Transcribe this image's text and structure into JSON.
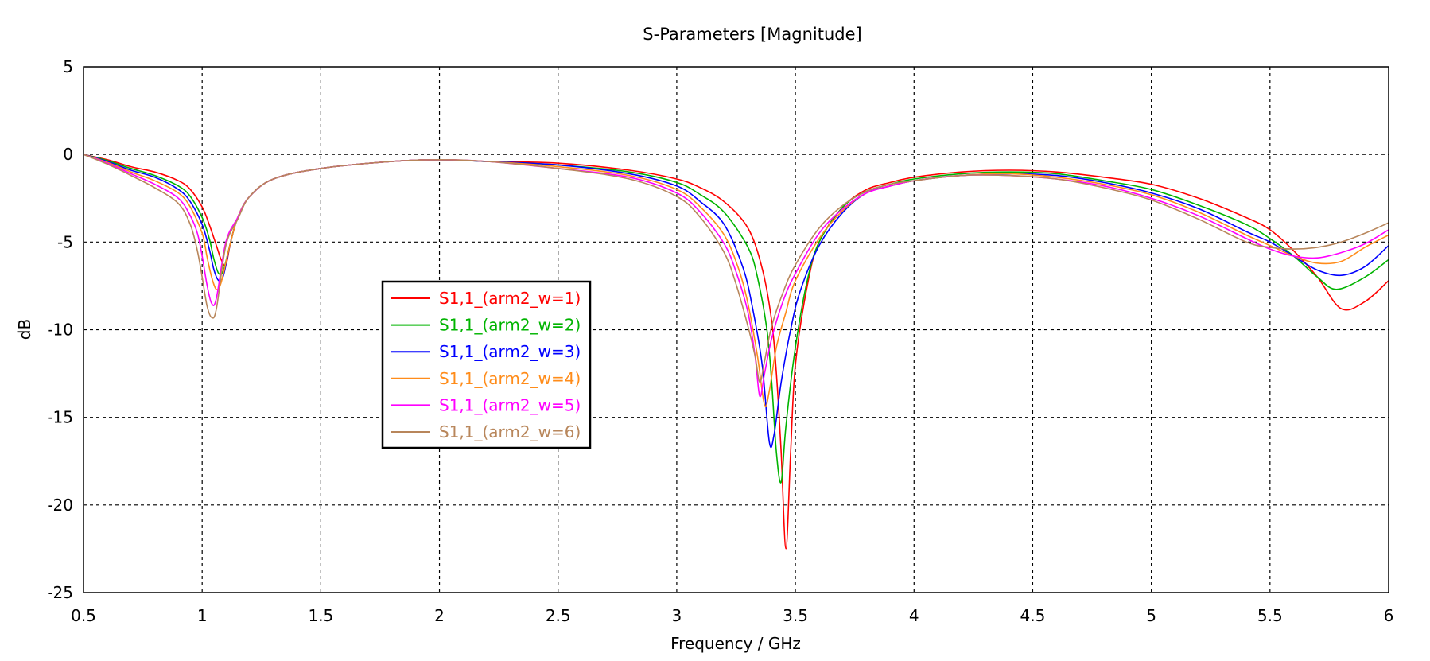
{
  "chart_data": {
    "type": "line",
    "title": "S-Parameters [Magnitude]",
    "xlabel": "Frequency / GHz",
    "ylabel": "dB",
    "xlim": [
      0.5,
      6
    ],
    "ylim": [
      -25,
      5
    ],
    "xticks": [
      0.5,
      1,
      1.5,
      2,
      2.5,
      3,
      3.5,
      4,
      4.5,
      5,
      5.5,
      6
    ],
    "xtick_labels": [
      "0.5",
      "1",
      "1.5",
      "2",
      "2.5",
      "3",
      "3.5",
      "4",
      "4.5",
      "5",
      "5.5",
      "6"
    ],
    "yticks": [
      5,
      0,
      -5,
      -10,
      -15,
      -20,
      -25
    ],
    "ytick_labels": [
      "5",
      "0",
      "-5",
      "-10",
      "-15",
      "-20",
      "-25"
    ],
    "grid": true,
    "legend_position": "center-left",
    "series": [
      {
        "name": "S1,1_(arm2_w=1)",
        "color": "#ff0000",
        "x": [
          0.5,
          0.6,
          0.7,
          0.8,
          0.9,
          0.95,
          1.0,
          1.03,
          1.06,
          1.08,
          1.1,
          1.12,
          1.15,
          1.2,
          1.3,
          1.5,
          1.8,
          2.0,
          2.2,
          2.5,
          2.8,
          3.0,
          3.1,
          3.2,
          3.3,
          3.36,
          3.4,
          3.42,
          3.44,
          3.46,
          3.48,
          3.5,
          3.55,
          3.6,
          3.7,
          3.8,
          3.9,
          4.0,
          4.2,
          4.4,
          4.6,
          4.8,
          5.0,
          5.2,
          5.4,
          5.5,
          5.6,
          5.7,
          5.8,
          5.9,
          6.0
        ],
        "y": [
          0,
          -0.3,
          -0.7,
          -1.0,
          -1.5,
          -2.0,
          -3.0,
          -4.0,
          -5.2,
          -6.0,
          -6.3,
          -5.0,
          -3.6,
          -2.4,
          -1.4,
          -0.8,
          -0.4,
          -0.3,
          -0.4,
          -0.5,
          -0.9,
          -1.4,
          -1.9,
          -2.7,
          -4.2,
          -6.5,
          -9.5,
          -12.5,
          -17.0,
          -22.5,
          -17.0,
          -12.0,
          -7.5,
          -5.0,
          -3.0,
          -2.0,
          -1.6,
          -1.3,
          -1.0,
          -0.9,
          -1.0,
          -1.3,
          -1.7,
          -2.5,
          -3.6,
          -4.3,
          -5.5,
          -7.0,
          -8.8,
          -8.4,
          -7.2
        ]
      },
      {
        "name": "S1,1_(arm2_w=2)",
        "color": "#00b400",
        "x": [
          0.5,
          0.6,
          0.7,
          0.8,
          0.9,
          0.95,
          1.0,
          1.03,
          1.05,
          1.07,
          1.09,
          1.12,
          1.15,
          1.2,
          1.3,
          1.5,
          1.8,
          2.0,
          2.2,
          2.5,
          2.8,
          3.0,
          3.1,
          3.2,
          3.3,
          3.34,
          3.38,
          3.4,
          3.42,
          3.44,
          3.46,
          3.5,
          3.55,
          3.6,
          3.7,
          3.8,
          3.9,
          4.0,
          4.2,
          4.4,
          4.6,
          4.8,
          5.0,
          5.2,
          5.4,
          5.5,
          5.6,
          5.7,
          5.78,
          5.9,
          6.0
        ],
        "y": [
          0,
          -0.35,
          -0.8,
          -1.2,
          -1.8,
          -2.4,
          -3.6,
          -4.8,
          -6.0,
          -6.8,
          -6.6,
          -5.0,
          -3.6,
          -2.4,
          -1.4,
          -0.8,
          -0.4,
          -0.3,
          -0.4,
          -0.6,
          -1.0,
          -1.6,
          -2.3,
          -3.3,
          -5.3,
          -7.0,
          -10.0,
          -13.0,
          -17.0,
          -18.7,
          -15.5,
          -11.0,
          -7.2,
          -5.0,
          -3.0,
          -2.1,
          -1.7,
          -1.4,
          -1.1,
          -1.0,
          -1.1,
          -1.5,
          -2.0,
          -2.9,
          -4.0,
          -4.8,
          -5.8,
          -7.0,
          -7.7,
          -7.0,
          -6.0
        ]
      },
      {
        "name": "S1,1_(arm2_w=3)",
        "color": "#0000ff",
        "x": [
          0.5,
          0.6,
          0.7,
          0.8,
          0.9,
          0.95,
          1.0,
          1.03,
          1.05,
          1.07,
          1.09,
          1.12,
          1.15,
          1.2,
          1.3,
          1.5,
          1.8,
          2.0,
          2.2,
          2.5,
          2.8,
          3.0,
          3.1,
          3.2,
          3.28,
          3.32,
          3.36,
          3.39,
          3.41,
          3.44,
          3.48,
          3.52,
          3.6,
          3.7,
          3.8,
          3.9,
          4.0,
          4.2,
          4.4,
          4.6,
          4.8,
          5.0,
          5.2,
          5.4,
          5.5,
          5.6,
          5.7,
          5.8,
          5.9,
          6.0
        ],
        "y": [
          0,
          -0.4,
          -0.9,
          -1.3,
          -2.0,
          -2.7,
          -4.0,
          -5.4,
          -6.6,
          -7.2,
          -6.9,
          -5.0,
          -3.6,
          -2.4,
          -1.4,
          -0.8,
          -0.4,
          -0.3,
          -0.4,
          -0.6,
          -1.1,
          -1.8,
          -2.7,
          -4.0,
          -6.5,
          -8.8,
          -12.0,
          -16.4,
          -16.0,
          -13.0,
          -10.0,
          -7.8,
          -5.2,
          -3.3,
          -2.2,
          -1.8,
          -1.5,
          -1.2,
          -1.1,
          -1.2,
          -1.6,
          -2.2,
          -3.1,
          -4.4,
          -5.0,
          -5.8,
          -6.6,
          -6.9,
          -6.4,
          -5.2
        ]
      },
      {
        "name": "S1,1_(arm2_w=4)",
        "color": "#ff8c1a",
        "x": [
          0.5,
          0.6,
          0.7,
          0.8,
          0.9,
          0.95,
          1.0,
          1.02,
          1.04,
          1.06,
          1.08,
          1.12,
          1.15,
          1.2,
          1.3,
          1.5,
          1.8,
          2.0,
          2.2,
          2.5,
          2.8,
          3.0,
          3.1,
          3.2,
          3.26,
          3.3,
          3.34,
          3.37,
          3.39,
          3.42,
          3.46,
          3.5,
          3.6,
          3.7,
          3.8,
          3.9,
          4.0,
          4.2,
          4.4,
          4.6,
          4.8,
          5.0,
          5.2,
          5.4,
          5.5,
          5.6,
          5.7,
          5.8,
          5.9,
          6.0
        ],
        "y": [
          0,
          -0.45,
          -1.0,
          -1.5,
          -2.2,
          -3.0,
          -4.5,
          -5.8,
          -7.0,
          -7.7,
          -7.3,
          -5.0,
          -3.6,
          -2.4,
          -1.4,
          -0.8,
          -0.4,
          -0.3,
          -0.4,
          -0.7,
          -1.2,
          -2.0,
          -3.0,
          -4.6,
          -6.5,
          -8.5,
          -11.5,
          -14.3,
          -13.5,
          -11.0,
          -9.0,
          -7.2,
          -4.8,
          -3.2,
          -2.2,
          -1.8,
          -1.5,
          -1.2,
          -1.1,
          -1.3,
          -1.7,
          -2.3,
          -3.3,
          -4.6,
          -5.2,
          -5.8,
          -6.2,
          -6.1,
          -5.3,
          -4.6
        ]
      },
      {
        "name": "S1,1_(arm2_w=5)",
        "color": "#ff00ff",
        "x": [
          0.5,
          0.6,
          0.7,
          0.8,
          0.9,
          0.95,
          0.98,
          1.0,
          1.02,
          1.04,
          1.06,
          1.1,
          1.15,
          1.2,
          1.3,
          1.5,
          1.8,
          2.0,
          2.2,
          2.5,
          2.8,
          3.0,
          3.1,
          3.2,
          3.25,
          3.3,
          3.33,
          3.35,
          3.37,
          3.4,
          3.45,
          3.5,
          3.6,
          3.7,
          3.8,
          3.9,
          4.0,
          4.2,
          4.4,
          4.6,
          4.8,
          5.0,
          5.2,
          5.4,
          5.5,
          5.6,
          5.7,
          5.8,
          5.9,
          6.0
        ],
        "y": [
          0,
          -0.5,
          -1.1,
          -1.7,
          -2.5,
          -3.5,
          -4.5,
          -5.8,
          -7.4,
          -8.5,
          -8.2,
          -5.0,
          -3.6,
          -2.4,
          -1.4,
          -0.8,
          -0.4,
          -0.3,
          -0.4,
          -0.8,
          -1.3,
          -2.2,
          -3.3,
          -5.1,
          -6.7,
          -9.0,
          -11.5,
          -13.8,
          -12.5,
          -10.5,
          -8.3,
          -6.8,
          -4.5,
          -3.1,
          -2.2,
          -1.8,
          -1.5,
          -1.2,
          -1.2,
          -1.4,
          -1.8,
          -2.5,
          -3.5,
          -4.8,
          -5.4,
          -5.8,
          -5.9,
          -5.6,
          -5.1,
          -4.3
        ]
      },
      {
        "name": "S1,1_(arm2_w=6)",
        "color": "#b8865b",
        "x": [
          0.5,
          0.6,
          0.7,
          0.8,
          0.9,
          0.95,
          0.98,
          1.0,
          1.02,
          1.04,
          1.06,
          1.1,
          1.15,
          1.2,
          1.3,
          1.5,
          1.8,
          2.0,
          2.2,
          2.5,
          2.8,
          3.0,
          3.1,
          3.2,
          3.25,
          3.3,
          3.33,
          3.35,
          3.37,
          3.4,
          3.45,
          3.5,
          3.6,
          3.7,
          3.8,
          3.9,
          4.0,
          4.2,
          4.4,
          4.6,
          4.8,
          5.0,
          5.2,
          5.4,
          5.5,
          5.6,
          5.7,
          5.8,
          5.9,
          6.0
        ],
        "y": [
          0,
          -0.55,
          -1.2,
          -1.9,
          -2.8,
          -4.0,
          -5.5,
          -7.0,
          -8.6,
          -9.3,
          -8.8,
          -5.2,
          -3.7,
          -2.4,
          -1.4,
          -0.8,
          -0.4,
          -0.3,
          -0.4,
          -0.8,
          -1.4,
          -2.4,
          -3.6,
          -5.6,
          -7.4,
          -9.8,
          -11.5,
          -13.0,
          -11.8,
          -9.8,
          -7.8,
          -6.3,
          -4.2,
          -2.9,
          -2.1,
          -1.7,
          -1.5,
          -1.2,
          -1.2,
          -1.4,
          -1.9,
          -2.6,
          -3.7,
          -5.0,
          -5.3,
          -5.4,
          -5.3,
          -5.0,
          -4.5,
          -3.9
        ]
      }
    ]
  }
}
